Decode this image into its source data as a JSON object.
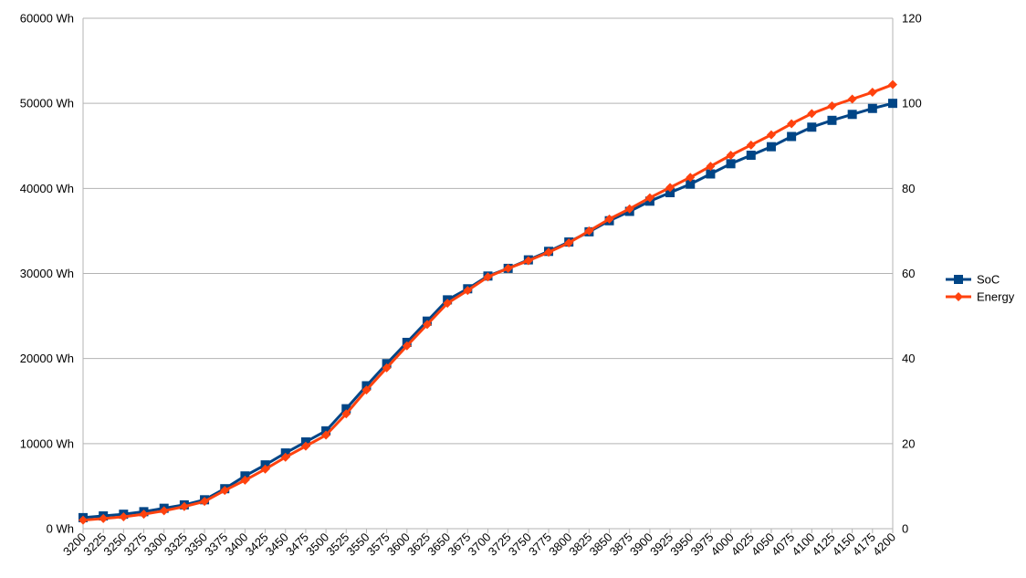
{
  "chart_data": {
    "type": "line",
    "title": "",
    "xlabel": "",
    "ylabel": "",
    "x": [
      3200,
      3225,
      3250,
      3275,
      3300,
      3325,
      3350,
      3375,
      3400,
      3425,
      3450,
      3475,
      3500,
      3525,
      3550,
      3575,
      3600,
      3625,
      3650,
      3675,
      3700,
      3725,
      3750,
      3775,
      3800,
      3825,
      3850,
      3875,
      3900,
      3925,
      3950,
      3975,
      4000,
      4025,
      4050,
      4075,
      4100,
      4125,
      4150,
      4175,
      4200
    ],
    "y_left": {
      "ylim": [
        0,
        60000
      ],
      "ticks": [
        0,
        10000,
        20000,
        30000,
        40000,
        50000,
        60000
      ],
      "tick_labels": [
        "0 Wh",
        "10000 Wh",
        "20000 Wh",
        "30000 Wh",
        "40000 Wh",
        "50000 Wh",
        "60000 Wh"
      ]
    },
    "y_right": {
      "ylim": [
        0,
        120
      ],
      "ticks": [
        0,
        20,
        40,
        60,
        80,
        100,
        120
      ],
      "tick_labels": [
        "0",
        "20",
        "40",
        "60",
        "80",
        "100",
        "120"
      ]
    },
    "grid": true,
    "legend_position": "right",
    "series": [
      {
        "name": "SoC",
        "axis": "right",
        "color": "#004586",
        "marker": "square",
        "values": [
          2.6,
          3.0,
          3.4,
          4.0,
          4.8,
          5.6,
          6.8,
          9.4,
          12.4,
          15.0,
          17.8,
          20.4,
          23.0,
          28.2,
          33.6,
          38.8,
          43.8,
          48.8,
          53.8,
          56.4,
          59.4,
          61.2,
          63.2,
          65.2,
          67.4,
          69.8,
          72.4,
          74.6,
          77.0,
          79.0,
          81.0,
          83.4,
          85.8,
          87.8,
          89.8,
          92.2,
          94.4,
          96.0,
          97.4,
          98.8,
          100.0
        ]
      },
      {
        "name": "Energy",
        "axis": "left",
        "color": "#ff420e",
        "marker": "diamond",
        "values": [
          1000,
          1200,
          1400,
          1700,
          2100,
          2600,
          3200,
          4500,
          5700,
          7000,
          8400,
          9700,
          11000,
          13500,
          16300,
          18900,
          21500,
          24000,
          26500,
          28000,
          29600,
          30600,
          31500,
          32500,
          33600,
          35000,
          36400,
          37600,
          38900,
          40100,
          41300,
          42600,
          43900,
          45100,
          46300,
          47600,
          48800,
          49700,
          50500,
          51300,
          52200
        ]
      }
    ]
  }
}
